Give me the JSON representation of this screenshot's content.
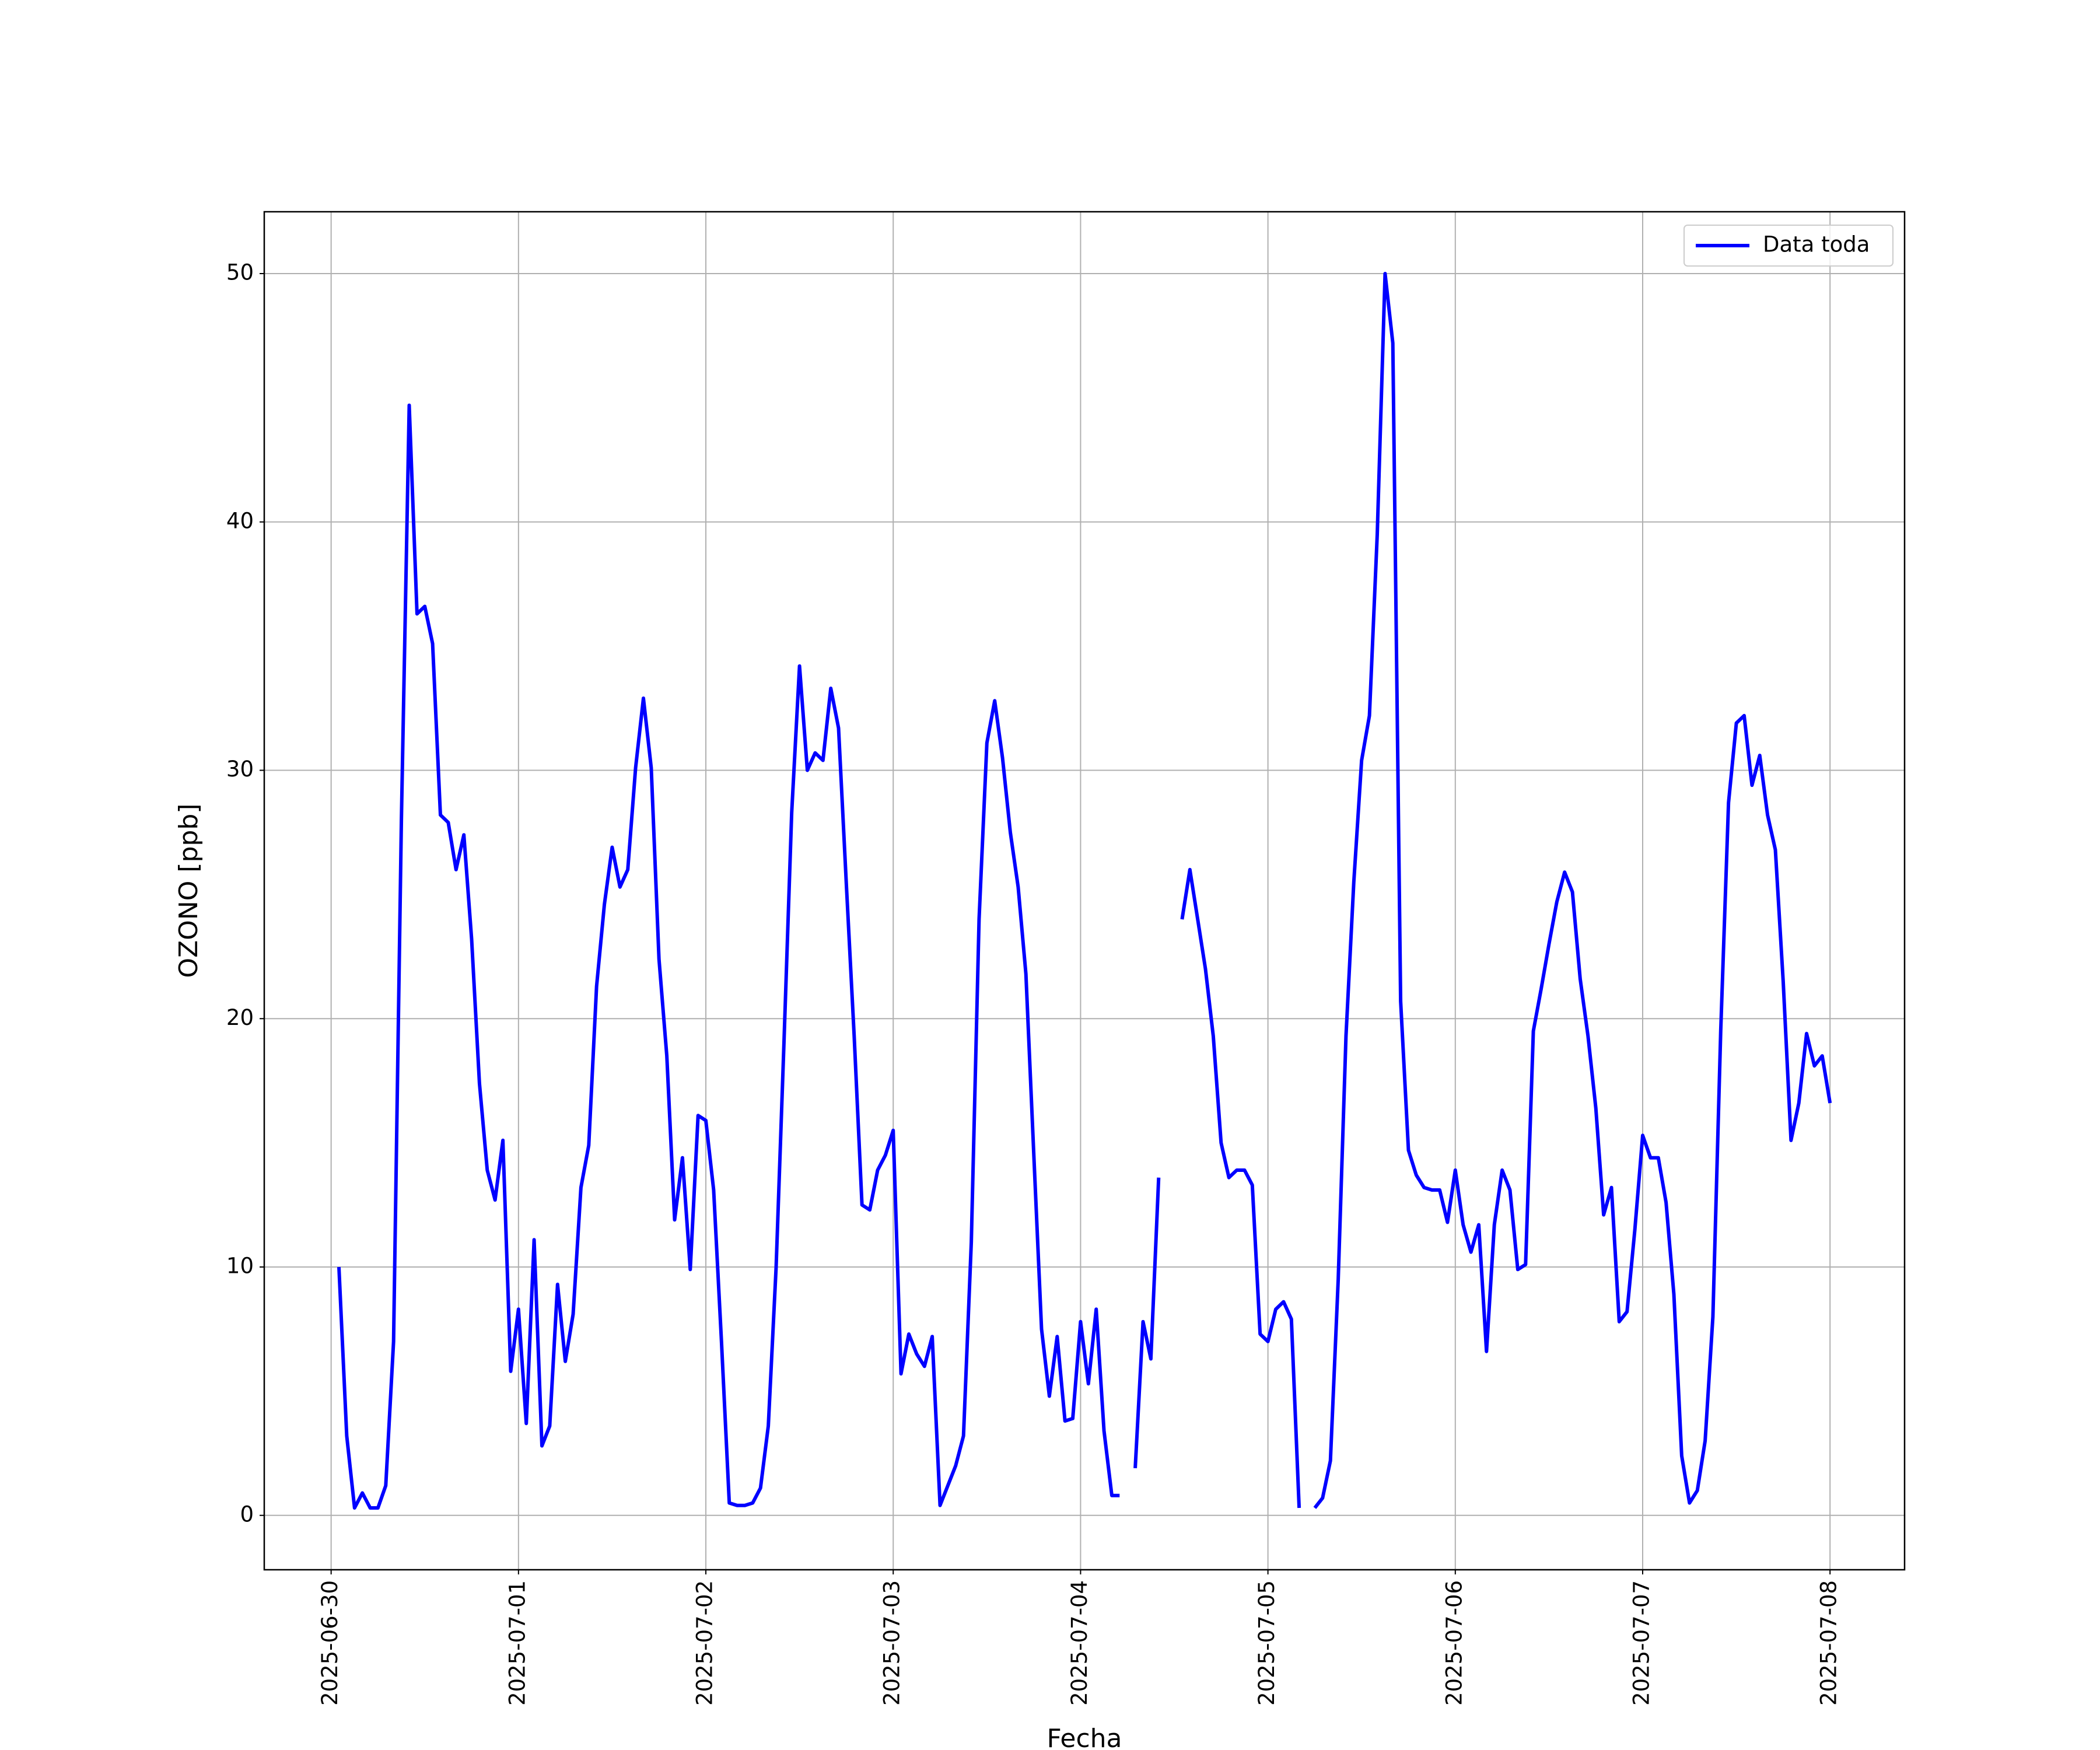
{
  "chart_data": {
    "type": "line",
    "xlabel": "Fecha",
    "ylabel": "OZONO [ppb]",
    "x": [
      "2025-06-30 01:00",
      "2025-06-30 02:00",
      "2025-06-30 03:00",
      "2025-06-30 04:00",
      "2025-06-30 05:00",
      "2025-06-30 06:00",
      "2025-06-30 07:00",
      "2025-06-30 08:00",
      "2025-06-30 09:00",
      "2025-06-30 10:00",
      "2025-06-30 11:00",
      "2025-06-30 12:00",
      "2025-06-30 13:00",
      "2025-06-30 14:00",
      "2025-06-30 15:00",
      "2025-06-30 16:00",
      "2025-06-30 17:00",
      "2025-06-30 18:00",
      "2025-06-30 19:00",
      "2025-06-30 20:00",
      "2025-06-30 21:00",
      "2025-06-30 22:00",
      "2025-06-30 23:00",
      "2025-07-01 00:00",
      "2025-07-01 01:00",
      "2025-07-01 02:00",
      "2025-07-01 03:00",
      "2025-07-01 04:00",
      "2025-07-01 05:00",
      "2025-07-01 06:00",
      "2025-07-01 07:00",
      "2025-07-01 08:00",
      "2025-07-01 09:00",
      "2025-07-01 10:00",
      "2025-07-01 11:00",
      "2025-07-01 12:00",
      "2025-07-01 13:00",
      "2025-07-01 14:00",
      "2025-07-01 15:00",
      "2025-07-01 16:00",
      "2025-07-01 17:00",
      "2025-07-01 18:00",
      "2025-07-01 19:00",
      "2025-07-01 20:00",
      "2025-07-01 21:00",
      "2025-07-01 22:00",
      "2025-07-01 23:00",
      "2025-07-02 00:00",
      "2025-07-02 01:00",
      "2025-07-02 02:00",
      "2025-07-02 03:00",
      "2025-07-02 04:00",
      "2025-07-02 05:00",
      "2025-07-02 06:00",
      "2025-07-02 07:00",
      "2025-07-02 08:00",
      "2025-07-02 09:00",
      "2025-07-02 10:00",
      "2025-07-02 11:00",
      "2025-07-02 12:00",
      "2025-07-02 13:00",
      "2025-07-02 14:00",
      "2025-07-02 15:00",
      "2025-07-02 16:00",
      "2025-07-02 17:00",
      "2025-07-02 18:00",
      "2025-07-02 19:00",
      "2025-07-02 20:00",
      "2025-07-02 21:00",
      "2025-07-02 22:00",
      "2025-07-02 23:00",
      "2025-07-03 00:00",
      "2025-07-03 01:00",
      "2025-07-03 02:00",
      "2025-07-03 03:00",
      "2025-07-03 04:00",
      "2025-07-03 05:00",
      "2025-07-03 06:00",
      "2025-07-03 07:00",
      "2025-07-03 08:00",
      "2025-07-03 09:00",
      "2025-07-03 10:00",
      "2025-07-03 11:00",
      "2025-07-03 12:00",
      "2025-07-03 13:00",
      "2025-07-03 14:00",
      "2025-07-03 15:00",
      "2025-07-03 16:00",
      "2025-07-03 17:00",
      "2025-07-03 18:00",
      "2025-07-03 19:00",
      "2025-07-03 20:00",
      "2025-07-03 21:00",
      "2025-07-03 22:00",
      "2025-07-03 23:00",
      "2025-07-04 00:00",
      "2025-07-04 01:00",
      "2025-07-04 02:00",
      "2025-07-04 03:00",
      "2025-07-04 04:00",
      "2025-07-04 05:00",
      "2025-07-04 06:00",
      "2025-07-04 07:00",
      "2025-07-04 08:00",
      "2025-07-04 09:00",
      "2025-07-04 10:00",
      "2025-07-04 11:00",
      "2025-07-04 12:00",
      "2025-07-04 13:00",
      "2025-07-04 14:00",
      "2025-07-04 15:00",
      "2025-07-04 16:00",
      "2025-07-04 17:00",
      "2025-07-04 18:00",
      "2025-07-04 19:00",
      "2025-07-04 20:00",
      "2025-07-04 21:00",
      "2025-07-04 22:00",
      "2025-07-04 23:00",
      "2025-07-05 00:00",
      "2025-07-05 01:00",
      "2025-07-05 02:00",
      "2025-07-05 03:00",
      "2025-07-05 04:00",
      "2025-07-05 05:00",
      "2025-07-05 06:00",
      "2025-07-05 07:00",
      "2025-07-05 08:00",
      "2025-07-05 09:00",
      "2025-07-05 10:00",
      "2025-07-05 11:00",
      "2025-07-05 12:00",
      "2025-07-05 13:00",
      "2025-07-05 14:00",
      "2025-07-05 15:00",
      "2025-07-05 16:00",
      "2025-07-05 17:00",
      "2025-07-05 18:00",
      "2025-07-05 19:00",
      "2025-07-05 20:00",
      "2025-07-05 21:00",
      "2025-07-05 22:00",
      "2025-07-05 23:00",
      "2025-07-06 00:00",
      "2025-07-06 01:00",
      "2025-07-06 02:00",
      "2025-07-06 03:00",
      "2025-07-06 04:00",
      "2025-07-06 05:00",
      "2025-07-06 06:00",
      "2025-07-06 07:00",
      "2025-07-06 08:00",
      "2025-07-06 09:00",
      "2025-07-06 10:00",
      "2025-07-06 11:00",
      "2025-07-06 12:00",
      "2025-07-06 13:00",
      "2025-07-06 14:00",
      "2025-07-06 15:00",
      "2025-07-06 16:00",
      "2025-07-06 17:00",
      "2025-07-06 18:00",
      "2025-07-06 19:00",
      "2025-07-06 20:00",
      "2025-07-06 21:00",
      "2025-07-06 22:00",
      "2025-07-06 23:00",
      "2025-07-07 00:00",
      "2025-07-07 01:00",
      "2025-07-07 02:00",
      "2025-07-07 03:00",
      "2025-07-07 04:00",
      "2025-07-07 05:00",
      "2025-07-07 06:00",
      "2025-07-07 07:00",
      "2025-07-07 08:00",
      "2025-07-07 09:00",
      "2025-07-07 10:00",
      "2025-07-07 11:00",
      "2025-07-07 12:00",
      "2025-07-07 13:00",
      "2025-07-07 14:00",
      "2025-07-07 15:00",
      "2025-07-07 16:00",
      "2025-07-07 17:00",
      "2025-07-07 18:00",
      "2025-07-07 19:00",
      "2025-07-07 20:00",
      "2025-07-07 21:00",
      "2025-07-07 22:00",
      "2025-07-07 23:00",
      "2025-07-08 00:00"
    ],
    "series": [
      {
        "name": "Data toda",
        "color": "#0000ff",
        "values": [
          10,
          3.2,
          0.3,
          0.9,
          0.3,
          0.3,
          1.2,
          7,
          28,
          44.7,
          36.3,
          36.6,
          35.1,
          28.2,
          27.9,
          26,
          27.4,
          23.2,
          17.4,
          13.9,
          12.7,
          15.1,
          5.8,
          8.3,
          3.7,
          11.1,
          2.8,
          3.6,
          9.3,
          6.2,
          8.1,
          13.2,
          14.9,
          21.3,
          24.6,
          26.9,
          25.3,
          26,
          30.1,
          32.9,
          30.1,
          22.4,
          18.5,
          11.9,
          14.4,
          9.9,
          16.1,
          15.9,
          13.1,
          7,
          0.5,
          0.4,
          0.4,
          0.5,
          1.1,
          3.6,
          10,
          19,
          28.3,
          34.2,
          30,
          30.7,
          30.4,
          33.3,
          31.7,
          25.4,
          19.3,
          12.5,
          12.3,
          13.9,
          14.5,
          15.5,
          5.7,
          7.3,
          6.5,
          6,
          7.2,
          0.4,
          1.2,
          2,
          3.2,
          11,
          24,
          31.1,
          32.8,
          30.5,
          27.5,
          25.3,
          21.8,
          14.6,
          7.5,
          4.8,
          7.2,
          3.8,
          3.9,
          7.8,
          5.3,
          8.3,
          3.4,
          0.8,
          0.8,
          null,
          1.9,
          7.8,
          6.3,
          13.6,
          null,
          null,
          24,
          26,
          24,
          22,
          19.3,
          15,
          13.6,
          13.9,
          13.9,
          13.3,
          7.3,
          7,
          8.3,
          8.6,
          7.9,
          0.3,
          null,
          0.3,
          0.7,
          2.2,
          9.5,
          19.3,
          25.5,
          30.4,
          32.2,
          39.5,
          50,
          47.2,
          20.7,
          14.7,
          13.7,
          13.2,
          13.1,
          13.1,
          11.8,
          13.9,
          11.7,
          10.6,
          11.7,
          6.6,
          11.7,
          13.9,
          13.1,
          9.9,
          10.1,
          19.5,
          21.2,
          23,
          24.7,
          25.9,
          25.1,
          21.6,
          19.3,
          16.4,
          12.1,
          13.2,
          7.8,
          8.2,
          11.5,
          15.3,
          14.4,
          14.4,
          12.6,
          8.9,
          2.4,
          0.5,
          1,
          3,
          8,
          19.5,
          28.7,
          31.9,
          32.2,
          29.4,
          30.6,
          28.2,
          26.8,
          21.5,
          15.1,
          16.6,
          19.4,
          18.1,
          18.5,
          16.6
        ]
      }
    ],
    "xlim": [
      "2025-06-29 15:26",
      "2025-07-08 09:33"
    ],
    "xticks": [
      "2025-06-30",
      "2025-07-01",
      "2025-07-02",
      "2025-07-03",
      "2025-07-04",
      "2025-07-05",
      "2025-07-06",
      "2025-07-07",
      "2025-07-08"
    ],
    "ylim": [
      -2.19,
      52.49
    ],
    "yticks": [
      0,
      10,
      20,
      30,
      40,
      50
    ],
    "grid": true,
    "legend": "upper right"
  }
}
